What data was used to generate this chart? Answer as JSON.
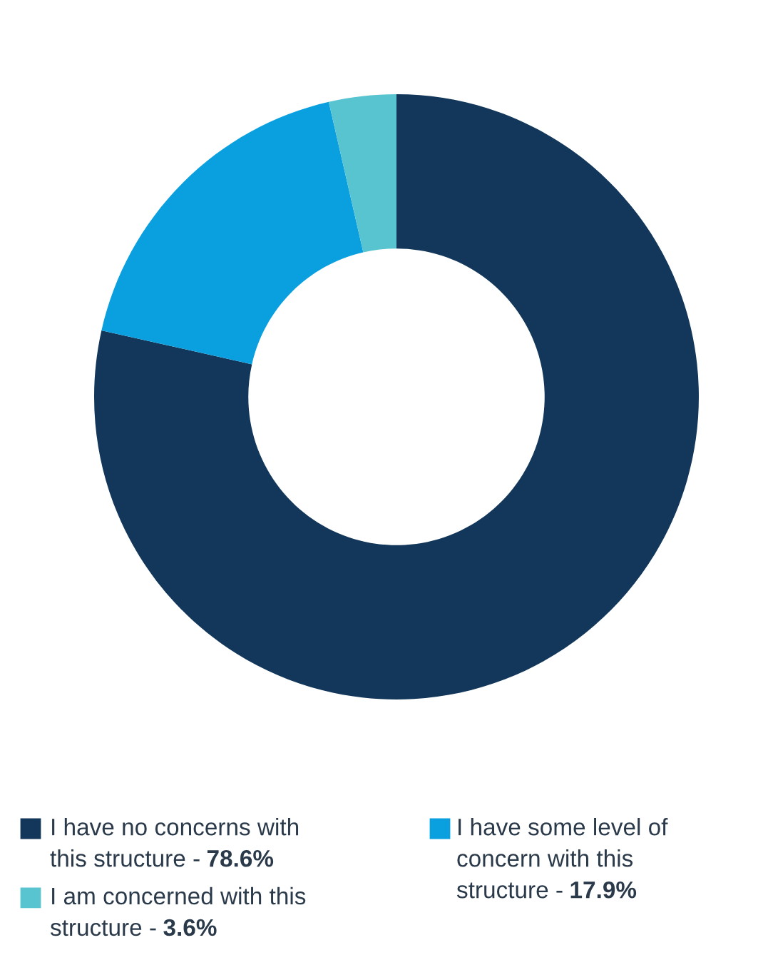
{
  "chart_data": {
    "type": "donut",
    "categories": [
      "I have no concerns with\nthis structure -",
      "I have some level of\nconcern with this\nstructure -",
      "I am concerned with this\nstructure -"
    ],
    "values": [
      78.6,
      17.9,
      3.6
    ],
    "colors": [
      "#12375a",
      "#0aa0e0",
      "#58c4d0"
    ],
    "value_labels": [
      "78.6%",
      "17.9%",
      "3.6%"
    ],
    "legend": "bottom"
  }
}
